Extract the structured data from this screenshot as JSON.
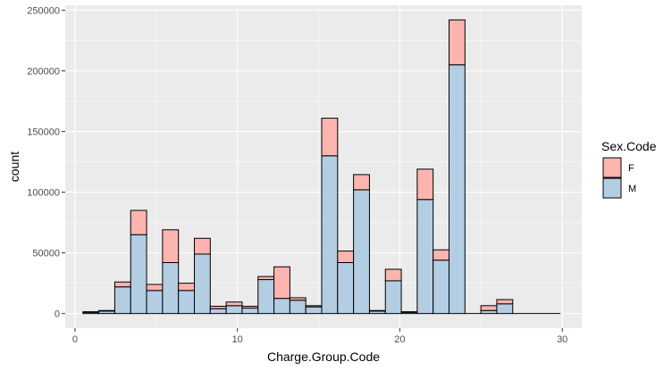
{
  "chart_data": {
    "type": "bar",
    "stacked": true,
    "xlabel": "Charge.Group.Code",
    "ylabel": "count",
    "xlim": [
      -0.6,
      31.2
    ],
    "ylim": [
      -12000,
      254000
    ],
    "x_ticks": [
      0,
      10,
      20,
      30
    ],
    "x_tick_labels": [
      "0",
      "10",
      "20",
      "30"
    ],
    "y_ticks": [
      0,
      50000,
      100000,
      150000,
      200000,
      250000
    ],
    "y_tick_labels": [
      "0",
      "50000",
      "100000",
      "150000",
      "200000",
      "250000"
    ],
    "bin_width": 0.98,
    "bins_x": [
      0.98,
      1.96,
      2.94,
      3.92,
      4.9,
      5.88,
      6.86,
      7.84,
      8.82,
      9.8,
      10.78,
      11.76,
      12.74,
      13.72,
      14.7,
      15.68,
      16.66,
      17.64,
      18.62,
      19.6,
      20.58,
      21.56,
      22.54,
      23.52,
      24.5,
      25.48,
      26.46,
      27.44,
      28.42,
      29.4
    ],
    "series": [
      {
        "name": "M",
        "color": "#b3cde3",
        "values": [
          1000,
          2000,
          22000,
          65000,
          19000,
          42000,
          19000,
          49000,
          4000,
          6500,
          4500,
          28000,
          12500,
          11000,
          5500,
          130000,
          42000,
          102000,
          2000,
          27000,
          1000,
          94000,
          44000,
          205000,
          0,
          2500,
          8000,
          0,
          0,
          0
        ]
      },
      {
        "name": "F",
        "color": "#fbb4ae",
        "values": [
          500,
          500,
          4000,
          20000,
          5000,
          27000,
          6000,
          13000,
          2000,
          3000,
          1500,
          2500,
          26000,
          2000,
          1000,
          31000,
          9500,
          12500,
          500,
          9500,
          500,
          25000,
          8500,
          37000,
          0,
          4000,
          3500,
          0,
          0,
          0
        ]
      }
    ],
    "legend": {
      "title": "Sex.Code",
      "position": "right",
      "entries": [
        {
          "label": "F",
          "color": "#fbb4ae"
        },
        {
          "label": "M",
          "color": "#b3cde3"
        }
      ]
    },
    "grid": true,
    "panel_background": "#ebebeb",
    "grid_color": "#ffffff",
    "bar_outline": "#000000"
  }
}
